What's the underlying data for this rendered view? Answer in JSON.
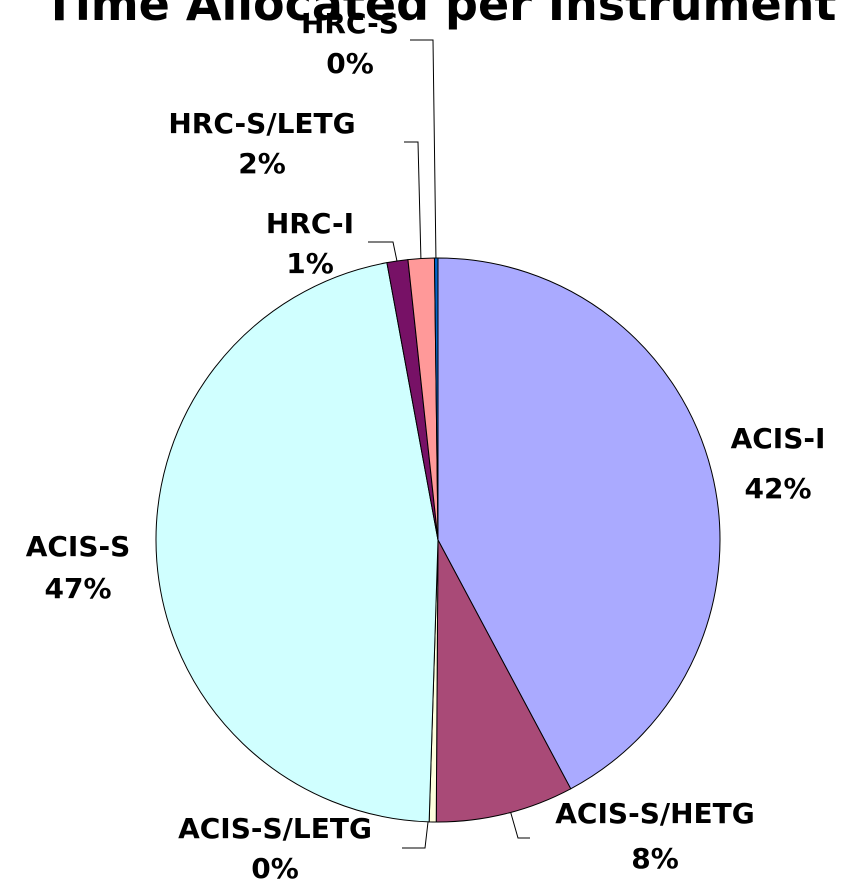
{
  "chart_data": {
    "type": "pie",
    "title": "Time Allocated per Instrument",
    "categories": [
      "ACIS-I",
      "ACIS-S/HETG",
      "ACIS-S/LETG",
      "ACIS-S",
      "HRC-I",
      "HRC-S/LETG",
      "HRC-S"
    ],
    "values": [
      42.2,
      7.9,
      0.4,
      46.6,
      1.2,
      1.5,
      0.2
    ],
    "value_labels": [
      "42%",
      "8%",
      "0%",
      "47%",
      "1%",
      "2%",
      "0%"
    ],
    "colors": [
      "#aaaaff",
      "#a94a77",
      "#ffffdd",
      "#d0ffff",
      "#771166",
      "#ff9999",
      "#0066cc"
    ]
  }
}
